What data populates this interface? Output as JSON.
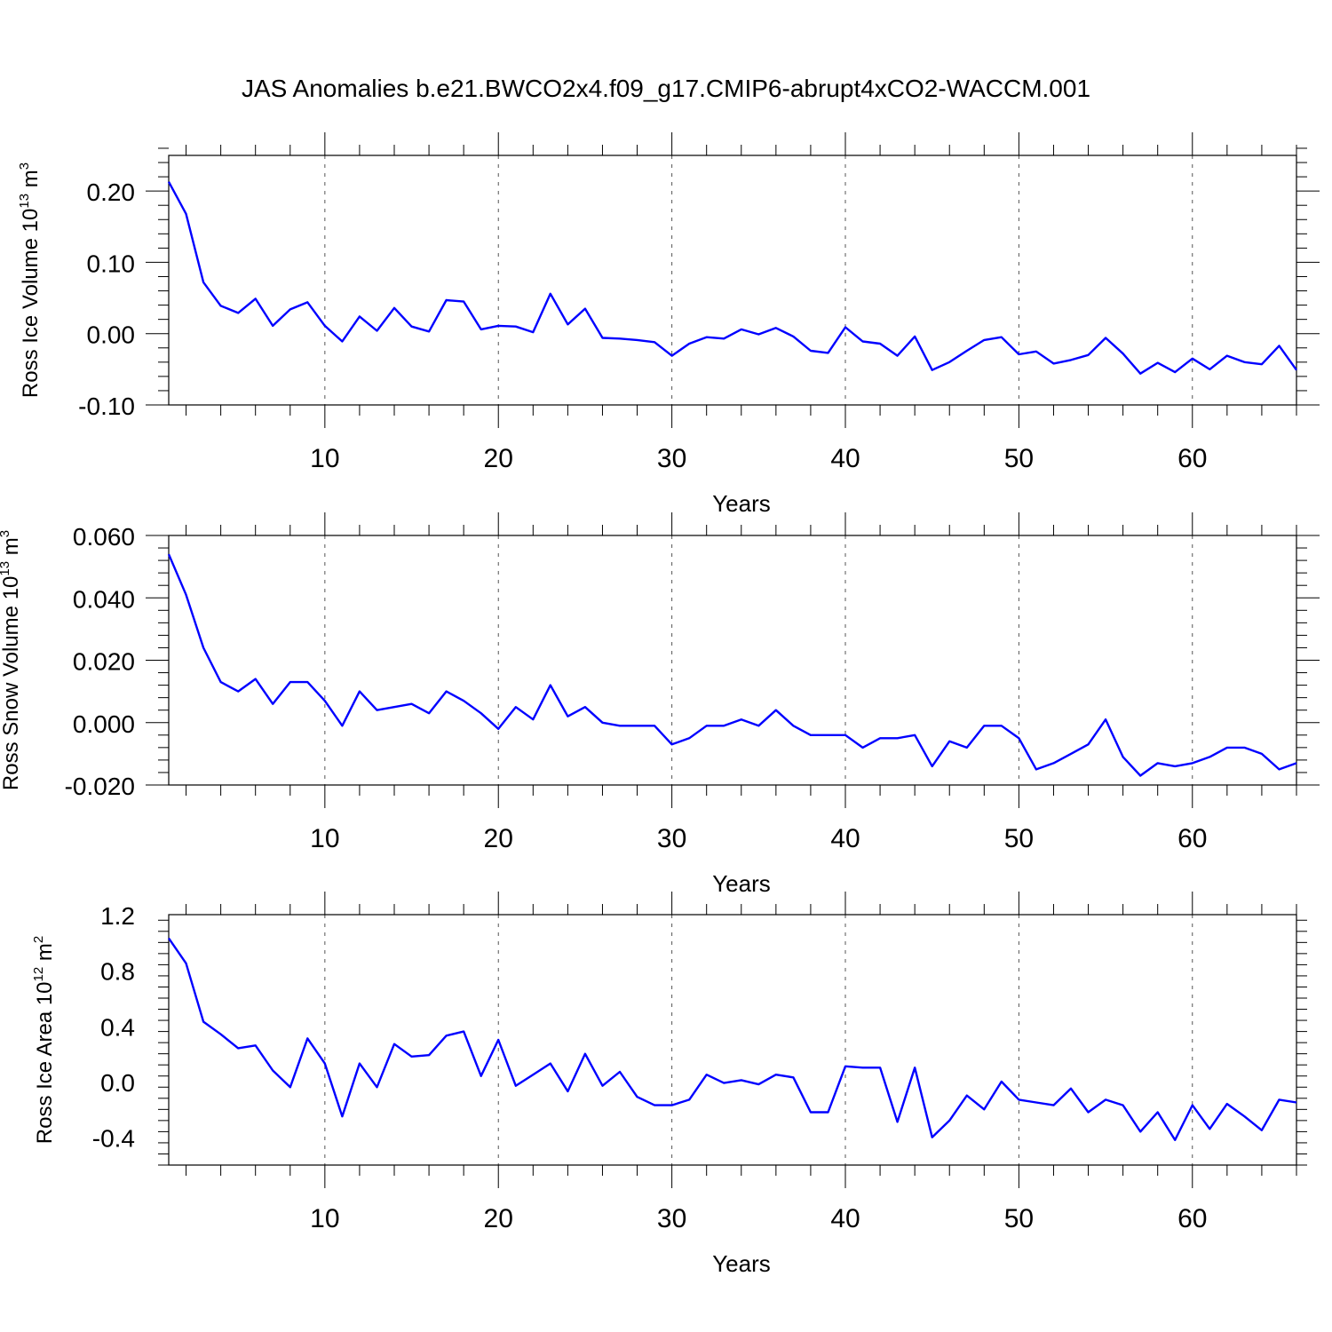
{
  "title": "JAS Anomalies b.e21.BWCO2x4.f09_g17.CMIP6-abrupt4xCO2-WACCM.001",
  "chart_data": [
    {
      "type": "line",
      "ylabel": "Ross Ice Volume 10",
      "ylabel_sup": "13",
      "ylabel_unit": "m",
      "ylabel_unit_sup": "3",
      "xlabel": "Years",
      "xlim": [
        1,
        66
      ],
      "ylim": [
        -0.1,
        0.25
      ],
      "yticks": [
        -0.1,
        0.0,
        0.1,
        0.2
      ],
      "ytick_labels": [
        "-0.10",
        "0.00",
        "0.10",
        "0.20"
      ],
      "xticks": [
        10,
        20,
        30,
        40,
        50,
        60
      ],
      "xtick_labels": [
        "10",
        "20",
        "30",
        "40",
        "50",
        "60"
      ],
      "grid": "vertical dashed at major x ticks",
      "color": "#0000ff",
      "x": [
        1,
        2,
        3,
        4,
        5,
        6,
        7,
        8,
        9,
        10,
        11,
        12,
        13,
        14,
        15,
        16,
        17,
        18,
        19,
        20,
        21,
        22,
        23,
        24,
        25,
        26,
        27,
        28,
        29,
        30,
        31,
        32,
        33,
        34,
        35,
        36,
        37,
        38,
        39,
        40,
        41,
        42,
        43,
        44,
        45,
        46,
        47,
        48,
        49,
        50,
        51,
        52,
        53,
        54,
        55,
        56,
        57,
        58,
        59,
        60,
        61,
        62,
        63,
        64,
        65,
        66
      ],
      "y": [
        0.213,
        0.168,
        0.072,
        0.039,
        0.029,
        0.049,
        0.011,
        0.034,
        0.044,
        0.011,
        -0.011,
        0.024,
        0.004,
        0.036,
        0.01,
        0.003,
        0.047,
        0.045,
        0.006,
        0.011,
        0.01,
        0.002,
        0.056,
        0.013,
        0.035,
        -0.006,
        -0.007,
        -0.009,
        -0.012,
        -0.031,
        -0.014,
        -0.005,
        -0.007,
        0.006,
        -0.001,
        0.008,
        -0.004,
        -0.024,
        -0.027,
        0.009,
        -0.011,
        -0.014,
        -0.031,
        -0.004,
        -0.051,
        -0.04,
        -0.024,
        -0.009,
        -0.005,
        -0.029,
        -0.025,
        -0.042,
        -0.037,
        -0.03,
        -0.006,
        -0.028,
        -0.056,
        -0.041,
        -0.054,
        -0.035,
        -0.05,
        -0.031,
        -0.04,
        -0.043,
        -0.017,
        -0.051
      ]
    },
    {
      "type": "line",
      "ylabel": "Ross Snow Volume 10",
      "ylabel_sup": "13",
      "ylabel_unit": "m",
      "ylabel_unit_sup": "3",
      "xlabel": "Years",
      "xlim": [
        1,
        66
      ],
      "ylim": [
        -0.02,
        0.06
      ],
      "yticks": [
        -0.02,
        0.0,
        0.02,
        0.04,
        0.06
      ],
      "ytick_labels": [
        "-0.020",
        "0.000",
        "0.020",
        "0.040",
        "0.060"
      ],
      "xticks": [
        10,
        20,
        30,
        40,
        50,
        60
      ],
      "xtick_labels": [
        "10",
        "20",
        "30",
        "40",
        "50",
        "60"
      ],
      "grid": "vertical dashed at major x ticks",
      "color": "#0000ff",
      "x": [
        1,
        2,
        3,
        4,
        5,
        6,
        7,
        8,
        9,
        10,
        11,
        12,
        13,
        14,
        15,
        16,
        17,
        18,
        19,
        20,
        21,
        22,
        23,
        24,
        25,
        26,
        27,
        28,
        29,
        30,
        31,
        32,
        33,
        34,
        35,
        36,
        37,
        38,
        39,
        40,
        41,
        42,
        43,
        44,
        45,
        46,
        47,
        48,
        49,
        50,
        51,
        52,
        53,
        54,
        55,
        56,
        57,
        58,
        59,
        60,
        61,
        62,
        63,
        64,
        65,
        66
      ],
      "y": [
        0.054,
        0.041,
        0.024,
        0.013,
        0.01,
        0.014,
        0.006,
        0.013,
        0.013,
        0.007,
        -0.001,
        0.01,
        0.004,
        0.005,
        0.006,
        0.003,
        0.01,
        0.007,
        0.003,
        -0.002,
        0.005,
        0.001,
        0.012,
        0.002,
        0.005,
        0.0,
        -0.001,
        -0.001,
        -0.001,
        -0.007,
        -0.005,
        -0.001,
        -0.001,
        0.001,
        -0.001,
        0.004,
        -0.001,
        -0.004,
        -0.004,
        -0.004,
        -0.008,
        -0.005,
        -0.005,
        -0.004,
        -0.014,
        -0.006,
        -0.008,
        -0.001,
        -0.001,
        -0.005,
        -0.015,
        -0.013,
        -0.01,
        -0.007,
        0.001,
        -0.011,
        -0.017,
        -0.013,
        -0.014,
        -0.013,
        -0.011,
        -0.008,
        -0.008,
        -0.01,
        -0.015,
        -0.013
      ]
    },
    {
      "type": "line",
      "ylabel": "Ross Ice Area 10",
      "ylabel_sup": "12",
      "ylabel_unit": "m",
      "ylabel_unit_sup": "2",
      "xlabel": "Years",
      "xlim": [
        1,
        66
      ],
      "ylim": [
        -0.6,
        1.2
      ],
      "yticks": [
        -0.4,
        0.0,
        0.4,
        0.8,
        1.2
      ],
      "ytick_labels": [
        "-0.4",
        "0.0",
        "0.4",
        "0.8",
        "1.2"
      ],
      "xticks": [
        10,
        20,
        30,
        40,
        50,
        60
      ],
      "xtick_labels": [
        "10",
        "20",
        "30",
        "40",
        "50",
        "60"
      ],
      "grid": "vertical dashed at major x ticks",
      "color": "#0000ff",
      "x": [
        1,
        2,
        3,
        4,
        5,
        6,
        7,
        8,
        9,
        10,
        11,
        12,
        13,
        14,
        15,
        16,
        17,
        18,
        19,
        20,
        21,
        22,
        23,
        24,
        25,
        26,
        27,
        28,
        29,
        30,
        31,
        32,
        33,
        34,
        35,
        36,
        37,
        38,
        39,
        40,
        41,
        42,
        43,
        44,
        45,
        46,
        47,
        48,
        49,
        50,
        51,
        52,
        53,
        54,
        55,
        56,
        57,
        58,
        59,
        60,
        61,
        62,
        63,
        64,
        65,
        66
      ],
      "y": [
        1.03,
        0.85,
        0.43,
        0.34,
        0.24,
        0.26,
        0.08,
        -0.04,
        0.31,
        0.13,
        -0.25,
        0.13,
        -0.04,
        0.27,
        0.18,
        0.19,
        0.33,
        0.36,
        0.04,
        0.3,
        -0.03,
        0.05,
        0.13,
        -0.07,
        0.2,
        -0.03,
        0.07,
        -0.11,
        -0.17,
        -0.17,
        -0.13,
        0.05,
        -0.01,
        0.01,
        -0.02,
        0.05,
        0.03,
        -0.22,
        -0.22,
        0.11,
        0.1,
        0.1,
        -0.29,
        0.1,
        -0.4,
        -0.28,
        -0.1,
        -0.2,
        0.0,
        -0.13,
        -0.15,
        -0.17,
        -0.05,
        -0.22,
        -0.13,
        -0.17,
        -0.36,
        -0.22,
        -0.42,
        -0.17,
        -0.34,
        -0.16,
        -0.25,
        -0.35,
        -0.13,
        -0.15
      ]
    }
  ]
}
